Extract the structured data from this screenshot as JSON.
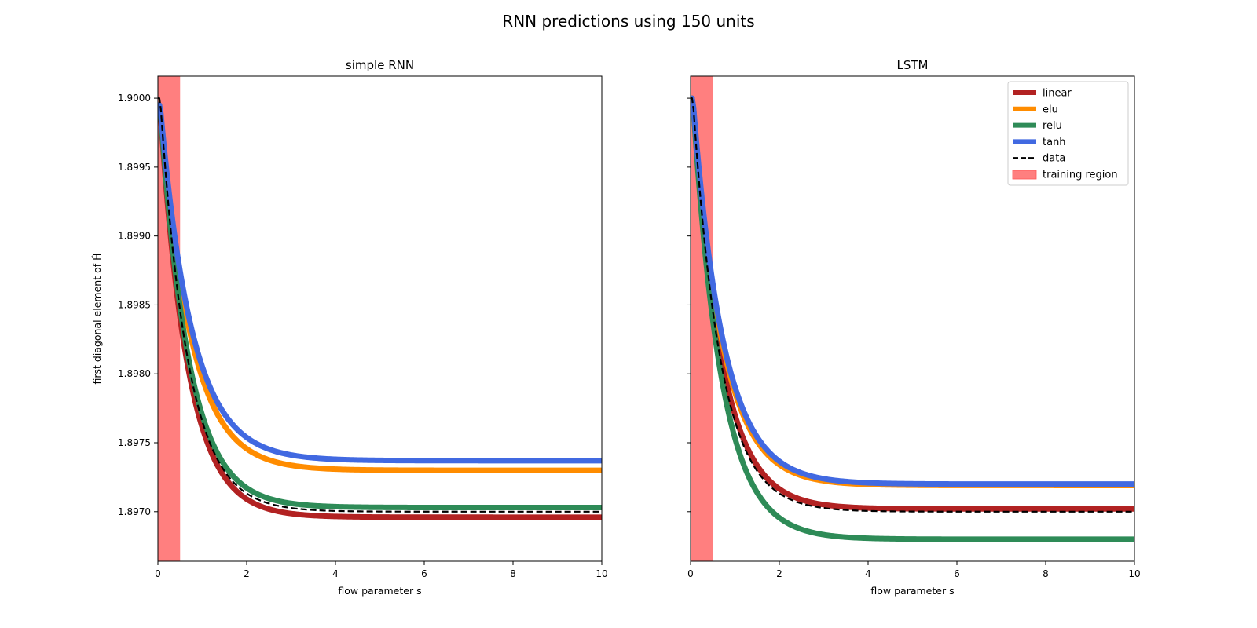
{
  "figure": {
    "title": "RNN predictions using 150 units"
  },
  "chart_data": [
    {
      "type": "line",
      "title": "simple RNN",
      "xlabel": "flow parameter s",
      "ylabel": "first diagonal element of Ĥ",
      "xlim": [
        0,
        10
      ],
      "ylim": [
        1.89664,
        1.90016
      ],
      "xticks": [
        0,
        2,
        4,
        6,
        8,
        10
      ],
      "yticks": [
        1.897,
        1.8975,
        1.898,
        1.8985,
        1.899,
        1.8995,
        1.9
      ],
      "ytick_labels": [
        "1.8970",
        "1.8975",
        "1.8980",
        "1.8985",
        "1.8990",
        "1.8995",
        "1.9000"
      ],
      "training_region": [
        0,
        0.5
      ],
      "series": [
        {
          "name": "linear",
          "style": "solid",
          "start": 1.89993,
          "end": 1.89696,
          "rate": 1.6
        },
        {
          "name": "elu",
          "style": "solid",
          "start": 1.89995,
          "end": 1.8973,
          "rate": 1.45
        },
        {
          "name": "relu",
          "style": "solid",
          "start": 1.89995,
          "end": 1.89703,
          "rate": 1.55
        },
        {
          "name": "tanh",
          "style": "solid",
          "start": 1.89995,
          "end": 1.89737,
          "rate": 1.4
        },
        {
          "name": "data",
          "style": "dashed",
          "start": 1.9,
          "end": 1.897,
          "rate": 1.6
        }
      ]
    },
    {
      "type": "line",
      "title": "LSTM",
      "xlabel": "flow parameter s",
      "ylabel": "",
      "xlim": [
        0,
        10
      ],
      "ylim": [
        1.89664,
        1.90016
      ],
      "xticks": [
        0,
        2,
        4,
        6,
        8,
        10
      ],
      "yticks": [
        1.897,
        1.8975,
        1.898,
        1.8985,
        1.899,
        1.8995,
        1.9
      ],
      "training_region": [
        0,
        0.5
      ],
      "series": [
        {
          "name": "linear",
          "style": "solid",
          "start": 1.9,
          "end": 1.89702,
          "rate": 1.55
        },
        {
          "name": "elu",
          "style": "solid",
          "start": 1.9,
          "end": 1.89719,
          "rate": 1.5
        },
        {
          "name": "relu",
          "style": "solid",
          "start": 1.9,
          "end": 1.8968,
          "rate": 1.55
        },
        {
          "name": "tanh",
          "style": "solid",
          "start": 1.9,
          "end": 1.8972,
          "rate": 1.45
        },
        {
          "name": "data",
          "style": "dashed",
          "start": 1.9,
          "end": 1.897,
          "rate": 1.6
        }
      ]
    }
  ],
  "legend": {
    "placement": "upper-right",
    "items": [
      {
        "label": "linear",
        "color": "#b22222",
        "kind": "line"
      },
      {
        "label": "elu",
        "color": "#ff8c00",
        "kind": "line"
      },
      {
        "label": "relu",
        "color": "#2e8b57",
        "kind": "line"
      },
      {
        "label": "tanh",
        "color": "#4169e1",
        "kind": "line"
      },
      {
        "label": "data",
        "color": "#000000",
        "kind": "dashed"
      },
      {
        "label": "training region",
        "color": "#ff7f7f",
        "kind": "patch"
      }
    ]
  },
  "colors": {
    "linear": "#b22222",
    "elu": "#ff8c00",
    "relu": "#2e8b57",
    "tanh": "#4169e1",
    "data": "#000000",
    "training_region": "#ff7f7f"
  }
}
